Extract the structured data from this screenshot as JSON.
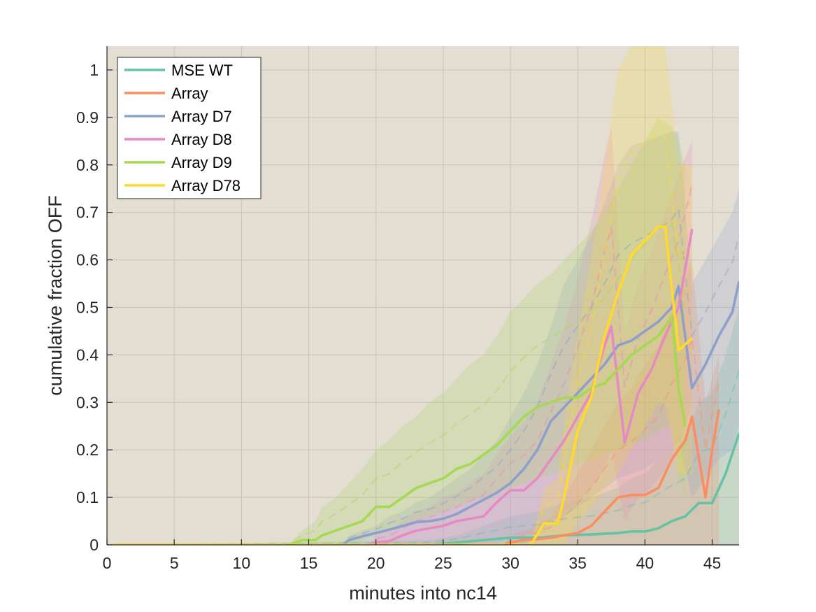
{
  "chart_data": {
    "type": "line",
    "xlabel": "minutes into nc14",
    "ylabel": "cumulative fraction OFF",
    "xlim": [
      0,
      47
    ],
    "ylim": [
      0,
      1.05
    ],
    "xticks": [
      0,
      5,
      10,
      15,
      20,
      25,
      30,
      35,
      40,
      45
    ],
    "yticks": [
      0,
      0.1,
      0.2,
      0.3,
      0.4,
      0.5,
      0.6,
      0.7,
      0.8,
      0.9,
      1
    ],
    "grid": true,
    "legend_location": "top-left",
    "background_color": "#e3ddd2",
    "series": [
      {
        "name": "MSE WT",
        "color": "#66c2a5",
        "x": [
          0.5,
          24,
          26,
          28,
          30,
          32,
          34,
          36,
          38,
          39,
          40,
          41,
          42,
          43,
          44,
          45,
          46,
          47
        ],
        "values": [
          0,
          0,
          0.005,
          0.01,
          0.015,
          0.015,
          0.02,
          0.022,
          0.025,
          0.028,
          0.028,
          0.035,
          0.05,
          0.06,
          0.088,
          0.088,
          0.15,
          0.235
        ],
        "band_upper": [
          0,
          0.01,
          0.02,
          0.04,
          0.06,
          0.07,
          0.09,
          0.1,
          0.12,
          0.14,
          0.15,
          0.18,
          0.2,
          0.22,
          0.3,
          0.32,
          0.4,
          0.5
        ],
        "band_lower": [
          0,
          0,
          0,
          0,
          0,
          0,
          0,
          0,
          0,
          0,
          0,
          0,
          0,
          0,
          0,
          0,
          0,
          0
        ]
      },
      {
        "name": "Array",
        "color": "#fc8d62",
        "x": [
          0.5,
          29.5,
          30,
          31,
          32,
          33,
          34,
          35,
          36,
          37,
          38,
          39,
          40,
          41,
          42,
          43,
          43.5,
          44.5,
          45,
          45.5
        ],
        "values": [
          0,
          0,
          0.005,
          0.01,
          0.012,
          0.015,
          0.02,
          0.025,
          0.04,
          0.07,
          0.1,
          0.105,
          0.105,
          0.12,
          0.18,
          0.22,
          0.27,
          0.1,
          0.2,
          0.285
        ],
        "band_upper": [
          0,
          0,
          0.02,
          0.03,
          0.04,
          0.06,
          0.1,
          0.15,
          0.2,
          0.25,
          0.3,
          0.33,
          0.38,
          0.42,
          0.5,
          0.56,
          0.6,
          0.3,
          0.35,
          0.4
        ],
        "band_lower": [
          0,
          0,
          0,
          0,
          0,
          0,
          0,
          0,
          0,
          0,
          0,
          0,
          0,
          0,
          0,
          0,
          0,
          0,
          0,
          0
        ]
      },
      {
        "name": "Array D7",
        "color": "#8da0cb",
        "x": [
          0.5,
          17.5,
          18,
          19,
          20,
          21,
          22,
          23,
          24,
          25,
          26,
          27,
          28,
          29,
          30,
          31,
          32,
          33,
          34,
          35,
          36,
          37,
          38,
          39,
          40,
          41,
          42,
          42.5,
          43.5,
          44.5,
          45.5,
          46.5,
          47
        ],
        "values": [
          0,
          0,
          0.01,
          0.018,
          0.025,
          0.032,
          0.04,
          0.048,
          0.05,
          0.055,
          0.065,
          0.08,
          0.095,
          0.11,
          0.13,
          0.16,
          0.2,
          0.26,
          0.29,
          0.32,
          0.35,
          0.38,
          0.42,
          0.43,
          0.45,
          0.47,
          0.5,
          0.545,
          0.33,
          0.38,
          0.44,
          0.49,
          0.555
        ],
        "band_upper": [
          0,
          0,
          0.02,
          0.03,
          0.04,
          0.06,
          0.07,
          0.09,
          0.1,
          0.12,
          0.14,
          0.16,
          0.19,
          0.22,
          0.27,
          0.32,
          0.38,
          0.46,
          0.55,
          0.6,
          0.65,
          0.72,
          0.8,
          0.84,
          0.85,
          0.86,
          0.87,
          0.87,
          0.55,
          0.6,
          0.65,
          0.7,
          0.75
        ],
        "band_lower": [
          0,
          0,
          0,
          0,
          0,
          0,
          0,
          0,
          0,
          0,
          0,
          0,
          0,
          0,
          0,
          0,
          0.02,
          0.05,
          0.06,
          0.08,
          0.1,
          0.12,
          0.14,
          0.15,
          0.16,
          0.18,
          0.2,
          0.22,
          0.1,
          0.14,
          0.18,
          0.2,
          0.25
        ]
      },
      {
        "name": "Array D8",
        "color": "#e78ac3",
        "x": [
          0.5,
          19.5,
          20,
          21,
          22,
          23,
          24,
          25,
          26,
          27,
          28,
          29,
          30,
          31,
          32,
          33,
          34,
          35,
          36,
          37,
          37.5,
          38.5,
          39.5,
          40.5,
          41.5,
          42.5,
          43.5
        ],
        "values": [
          0,
          0,
          0.005,
          0.008,
          0.02,
          0.03,
          0.035,
          0.04,
          0.05,
          0.055,
          0.06,
          0.09,
          0.115,
          0.115,
          0.14,
          0.18,
          0.22,
          0.27,
          0.32,
          0.42,
          0.46,
          0.215,
          0.32,
          0.37,
          0.44,
          0.5,
          0.665
        ],
        "band_upper": [
          0,
          0,
          0.02,
          0.03,
          0.05,
          0.07,
          0.08,
          0.1,
          0.11,
          0.13,
          0.15,
          0.19,
          0.23,
          0.26,
          0.3,
          0.38,
          0.46,
          0.56,
          0.68,
          0.82,
          0.88,
          0.45,
          0.55,
          0.62,
          0.7,
          0.78,
          0.85
        ],
        "band_lower": [
          0,
          0,
          0,
          0,
          0,
          0,
          0,
          0,
          0,
          0,
          0,
          0,
          0.02,
          0.02,
          0.03,
          0.05,
          0.07,
          0.09,
          0.12,
          0.16,
          0.2,
          0.05,
          0.1,
          0.12,
          0.16,
          0.2,
          0.3
        ]
      },
      {
        "name": "Array D9",
        "color": "#a6d854",
        "x": [
          0.5,
          13.5,
          14.5,
          15.5,
          16,
          17,
          18,
          19,
          20,
          21,
          22,
          23,
          24,
          25,
          26,
          27,
          28,
          29,
          30,
          31,
          32,
          33,
          34,
          35,
          36,
          37,
          38,
          39,
          40,
          41,
          42,
          42.5,
          43
        ],
        "values": [
          0,
          0,
          0.01,
          0.01,
          0.02,
          0.03,
          0.04,
          0.05,
          0.08,
          0.08,
          0.1,
          0.12,
          0.13,
          0.14,
          0.16,
          0.17,
          0.19,
          0.21,
          0.24,
          0.27,
          0.29,
          0.3,
          0.31,
          0.31,
          0.33,
          0.34,
          0.37,
          0.4,
          0.42,
          0.44,
          0.48,
          0.33,
          0.25
        ],
        "band_upper": [
          0,
          0,
          0.03,
          0.05,
          0.08,
          0.1,
          0.13,
          0.16,
          0.2,
          0.22,
          0.25,
          0.27,
          0.3,
          0.32,
          0.35,
          0.38,
          0.4,
          0.44,
          0.49,
          0.52,
          0.55,
          0.57,
          0.6,
          0.63,
          0.66,
          0.7,
          0.75,
          0.8,
          0.85,
          0.9,
          0.88,
          0.85,
          0.8
        ],
        "band_lower": [
          0,
          0,
          0,
          0,
          0,
          0,
          0,
          0.01,
          0.02,
          0.03,
          0.04,
          0.05,
          0.06,
          0.07,
          0.08,
          0.09,
          0.1,
          0.11,
          0.12,
          0.13,
          0.14,
          0.15,
          0.16,
          0.17,
          0.18,
          0.19,
          0.2,
          0.21,
          0.22,
          0.24,
          0.25,
          0.15,
          0.1
        ]
      },
      {
        "name": "Array D78",
        "color": "#ffd92f",
        "x": [
          0.5,
          31.5,
          32.5,
          33.5,
          34,
          35,
          36,
          37,
          38,
          39,
          40,
          41,
          41.5,
          42.5,
          43.5
        ],
        "values": [
          0,
          0,
          0.045,
          0.045,
          0.1,
          0.24,
          0.31,
          0.44,
          0.53,
          0.61,
          0.64,
          0.67,
          0.67,
          0.41,
          0.435
        ],
        "band_upper": [
          0,
          0,
          0.12,
          0.14,
          0.25,
          0.45,
          0.6,
          0.8,
          1.0,
          1.05,
          1.05,
          1.05,
          1.05,
          0.8,
          0.8
        ],
        "band_lower": [
          0,
          0,
          0,
          0,
          0,
          0.05,
          0.08,
          0.12,
          0.15,
          0.2,
          0.25,
          0.3,
          0.3,
          0.15,
          0.15
        ]
      }
    ]
  }
}
